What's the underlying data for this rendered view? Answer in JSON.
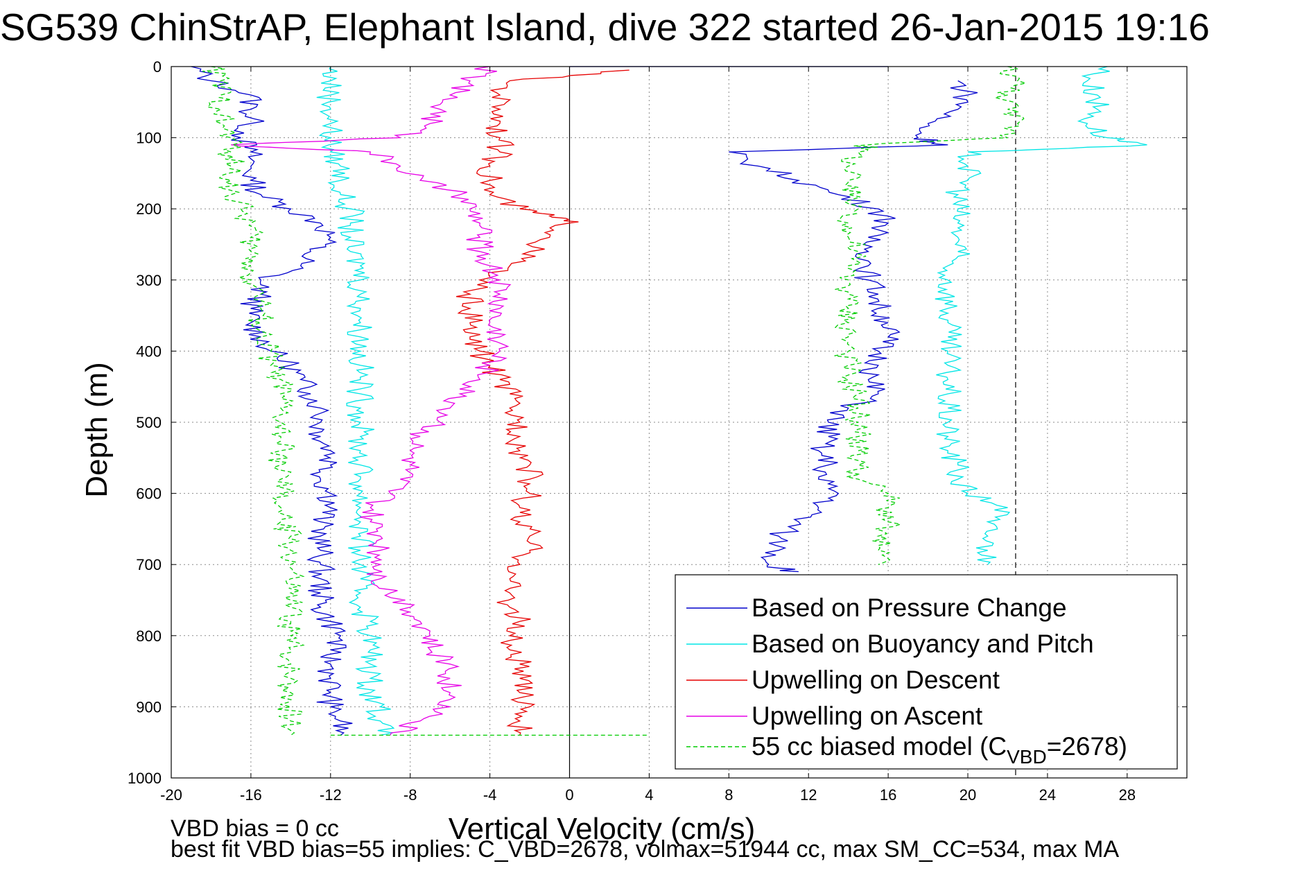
{
  "chart_data": {
    "type": "line",
    "title": "SG539 ChinStrAP, Elephant Island, dive 322 started 26-Jan-2015 19:16",
    "xlabel": "Vertical Velocity (cm/s)",
    "ylabel": "Depth (m)",
    "xlim": [
      -20,
      31
    ],
    "ylim": [
      1000,
      0
    ],
    "y_reversed": true,
    "grid": true,
    "x_ticks": [
      -20,
      -16,
      -12,
      -8,
      -4,
      0,
      4,
      8,
      12,
      16,
      20,
      24,
      28
    ],
    "y_ticks": [
      0,
      100,
      200,
      300,
      400,
      500,
      600,
      700,
      800,
      900,
      1000
    ],
    "reference_lines": [
      {
        "axis": "x",
        "value": 0,
        "style": "solid",
        "color": "#000000"
      },
      {
        "axis": "x",
        "value": 22.4,
        "style": "dashed",
        "color": "#000000"
      }
    ],
    "legend": {
      "position": "bottom-right",
      "entries": [
        {
          "label": "Based on Pressure Change",
          "color": "#0000cc",
          "style": "solid"
        },
        {
          "label": "Based on Buoyancy and Pitch",
          "color": "#00e5e5",
          "style": "solid"
        },
        {
          "label": "Upwelling on Descent",
          "color": "#e60000",
          "style": "solid"
        },
        {
          "label": "Upwelling on Ascent",
          "color": "#e600e6",
          "style": "solid"
        },
        {
          "label_prefix": "55 cc biased model (C",
          "label_sub": "VBD",
          "label_suffix": "=2678)",
          "color": "#00cc00",
          "style": "dashed"
        }
      ]
    },
    "series": [
      {
        "key": "pressure_down",
        "color": "#0000cc",
        "dash": false,
        "depth": [
          0,
          20,
          40,
          60,
          80,
          100,
          120,
          140,
          160,
          180,
          200,
          220,
          240,
          260,
          280,
          300,
          320,
          340,
          360,
          380,
          400,
          420,
          440,
          460,
          480,
          500,
          520,
          540,
          560,
          580,
          600,
          620,
          640,
          660,
          680,
          700,
          720,
          740,
          760,
          780,
          800,
          820,
          840,
          860,
          880,
          900,
          920,
          940
        ],
        "values": [
          -19,
          -18,
          -16,
          -16,
          -16,
          -16.5,
          -16,
          -16,
          -16,
          -15.5,
          -14,
          -12.5,
          -12,
          -13,
          -13.5,
          -15.5,
          -15.5,
          -16,
          -16,
          -15.5,
          -15,
          -14,
          -13.5,
          -13,
          -12.5,
          -12.5,
          -12.5,
          -12,
          -12,
          -12.5,
          -12,
          -12,
          -12.5,
          -12.5,
          -12.5,
          -12.5,
          -12.5,
          -12.5,
          -12.5,
          -12,
          -11.5,
          -12,
          -12,
          -12,
          -12,
          -12,
          -11.5,
          -11.5
        ]
      },
      {
        "key": "pressure_up",
        "color": "#0000cc",
        "dash": false,
        "depth": [
          20,
          40,
          60,
          80,
          100,
          110,
          120,
          140,
          160,
          180,
          200,
          220,
          240,
          260,
          280,
          300,
          320,
          340,
          360,
          380,
          400,
          420,
          440,
          460,
          480,
          500,
          520,
          540,
          560,
          580,
          600,
          620,
          640,
          660,
          680,
          700,
          710
        ],
        "values": [
          19.5,
          20,
          19.5,
          18,
          17.5,
          19,
          8,
          9.5,
          11.5,
          13.5,
          15.5,
          16,
          15,
          15,
          15,
          15,
          15.5,
          15.5,
          16,
          16,
          15.5,
          15.5,
          15,
          15.5,
          14,
          13,
          13,
          12.5,
          13,
          12.5,
          13.5,
          12.5,
          11.5,
          10.5,
          10.5,
          10,
          11.5
        ]
      },
      {
        "key": "buoyancy_down",
        "color": "#00e5e5",
        "dash": false,
        "depth": [
          0,
          20,
          40,
          60,
          80,
          100,
          120,
          140,
          160,
          180,
          200,
          220,
          240,
          260,
          280,
          300,
          320,
          340,
          360,
          380,
          400,
          420,
          440,
          460,
          480,
          500,
          520,
          540,
          560,
          580,
          600,
          620,
          640,
          660,
          680,
          700,
          720,
          740,
          760,
          780,
          800,
          820,
          840,
          860,
          880,
          900,
          920,
          940
        ],
        "values": [
          -12,
          -12,
          -12,
          -12,
          -12,
          -12,
          -12,
          -11.5,
          -11.5,
          -11.5,
          -11,
          -11,
          -11,
          -11,
          -10.5,
          -10.5,
          -10.5,
          -10.5,
          -10.5,
          -10.5,
          -10.5,
          -10.5,
          -10.5,
          -10.5,
          -10.5,
          -10.5,
          -10.5,
          -10.5,
          -10.5,
          -10.5,
          -10.5,
          -10.5,
          -10.5,
          -10.5,
          -10.5,
          -10.5,
          -10.5,
          -10.5,
          -10.5,
          -10,
          -10,
          -10,
          -10,
          -10,
          -10,
          -9.5,
          -9.5,
          -9.5
        ]
      },
      {
        "key": "buoyancy_up",
        "color": "#00e5e5",
        "dash": false,
        "depth": [
          0,
          20,
          40,
          60,
          80,
          100,
          110,
          120,
          140,
          160,
          180,
          200,
          220,
          240,
          260,
          280,
          300,
          320,
          340,
          360,
          380,
          400,
          420,
          440,
          460,
          480,
          500,
          520,
          540,
          560,
          580,
          600,
          620,
          640,
          660,
          680,
          700
        ],
        "values": [
          27,
          26,
          26.5,
          26.5,
          26,
          27,
          29,
          20,
          20,
          20,
          19.5,
          19.5,
          19.5,
          19.5,
          19.5,
          19,
          19,
          19,
          19,
          19,
          19,
          19,
          19,
          19,
          19,
          19,
          19,
          19,
          19,
          19.5,
          19.5,
          20,
          22,
          21,
          21,
          21,
          21
        ]
      },
      {
        "key": "upwelling_descent",
        "color": "#e60000",
        "dash": false,
        "depth": [
          5,
          20,
          40,
          60,
          80,
          100,
          120,
          140,
          160,
          180,
          200,
          210,
          220,
          240,
          260,
          280,
          300,
          320,
          340,
          360,
          380,
          400,
          420,
          440,
          460,
          480,
          500,
          520,
          540,
          560,
          580,
          600,
          620,
          640,
          660,
          680,
          700,
          720,
          740,
          760,
          780,
          800,
          820,
          840,
          860,
          880,
          900,
          920,
          940
        ],
        "values": [
          3,
          -3,
          -3.5,
          -3.5,
          -3.5,
          -3.5,
          -3.5,
          -4,
          -4,
          -4,
          -2.5,
          -1,
          0,
          -1,
          -2,
          -3,
          -4.5,
          -5,
          -5,
          -5,
          -5,
          -4.5,
          -4,
          -3.5,
          -3,
          -3,
          -2.5,
          -2.5,
          -2.5,
          -2,
          -2,
          -2,
          -2.5,
          -2.5,
          -2,
          -2,
          -2.5,
          -3,
          -3,
          -3,
          -2.5,
          -3,
          -3,
          -2.5,
          -2.5,
          -2.5,
          -2,
          -2.5,
          -2.5
        ]
      },
      {
        "key": "upwelling_ascent",
        "color": "#e600e6",
        "dash": false,
        "depth": [
          0,
          20,
          40,
          60,
          80,
          100,
          110,
          120,
          140,
          160,
          180,
          200,
          220,
          240,
          260,
          280,
          300,
          320,
          340,
          360,
          380,
          400,
          420,
          440,
          460,
          480,
          500,
          520,
          540,
          560,
          580,
          600,
          620,
          640,
          660,
          680,
          700,
          720,
          740,
          760,
          780,
          800,
          820,
          840,
          860,
          880,
          900,
          920,
          940
        ],
        "values": [
          -4,
          -5,
          -6,
          -6.5,
          -7,
          -8.5,
          -17,
          -10,
          -8.5,
          -7.5,
          -5.5,
          -5,
          -4.5,
          -4.5,
          -4.5,
          -4,
          -3.5,
          -3.5,
          -3.5,
          -4,
          -3.5,
          -3.5,
          -4,
          -4.5,
          -5.5,
          -6,
          -6.5,
          -7.5,
          -8,
          -8,
          -8.5,
          -9,
          -10,
          -10,
          -9.5,
          -9.5,
          -9.5,
          -9.5,
          -9,
          -8,
          -7.5,
          -7,
          -7,
          -6,
          -6,
          -6,
          -6,
          -7.5,
          -9
        ]
      },
      {
        "key": "model_down",
        "color": "#00cc00",
        "dash": true,
        "depth": [
          0,
          20,
          40,
          60,
          80,
          100,
          120,
          140,
          160,
          180,
          200,
          220,
          240,
          260,
          280,
          300,
          320,
          340,
          360,
          380,
          400,
          420,
          440,
          460,
          480,
          500,
          520,
          540,
          560,
          580,
          600,
          620,
          640,
          660,
          680,
          700,
          720,
          740,
          760,
          780,
          800,
          820,
          840,
          860,
          880,
          900,
          920,
          940
        ],
        "values": [
          -18,
          -17.5,
          -17.5,
          -17.5,
          -17.5,
          -17,
          -17,
          -17,
          -17,
          -17,
          -16.5,
          -16,
          -16,
          -16,
          -16,
          -16,
          -15.5,
          -15.5,
          -15.5,
          -15.5,
          -15,
          -15,
          -14.5,
          -14.5,
          -14.5,
          -14.5,
          -14.5,
          -14.5,
          -14.5,
          -14.5,
          -14.5,
          -14.5,
          -14.5,
          -14,
          -14,
          -14,
          -14,
          -14,
          -14,
          -14,
          -14,
          -14,
          -14,
          -14,
          -14,
          -14,
          -14,
          -14
        ]
      },
      {
        "key": "model_up",
        "color": "#00cc00",
        "dash": true,
        "depth": [
          0,
          20,
          40,
          60,
          80,
          100,
          110,
          120,
          140,
          160,
          180,
          200,
          220,
          240,
          260,
          280,
          300,
          320,
          340,
          360,
          380,
          400,
          420,
          440,
          460,
          480,
          500,
          520,
          540,
          560,
          580,
          600,
          620,
          640,
          660,
          680,
          700
        ],
        "values": [
          22,
          22.5,
          22,
          22,
          22.5,
          22,
          15,
          14.5,
          14,
          14,
          14,
          14.5,
          14,
          14,
          14.5,
          14,
          14,
          14,
          14,
          14,
          14,
          14,
          14,
          14,
          14.5,
          14.5,
          14.5,
          14.5,
          14.5,
          14.5,
          14.5,
          16,
          16,
          16,
          15.5,
          15.5,
          15.5
        ]
      },
      {
        "key": "surface_segment",
        "color": "#0000cc",
        "dash": false,
        "depth": [
          0,
          0
        ],
        "values": [
          0,
          16
        ]
      },
      {
        "key": "bottom_segment",
        "color": "#00cc00",
        "dash": true,
        "depth": [
          940,
          940
        ],
        "values": [
          -12,
          4
        ]
      }
    ]
  },
  "footer": {
    "line1": "VBD bias = 0 cc",
    "line2": "best fit VBD bias=55 implies: C_VBD=2678, volmax=51944 cc, max SM_CC=534, max MA"
  }
}
